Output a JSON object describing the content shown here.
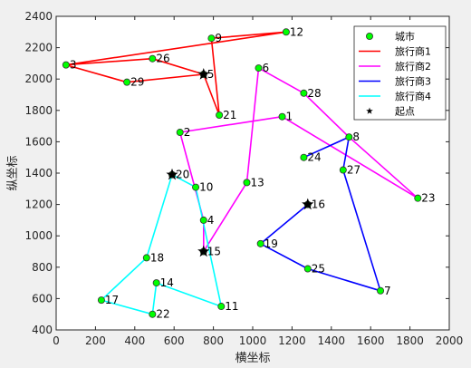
{
  "chart_data": {
    "type": "line",
    "xlabel": "横坐标",
    "ylabel": "纵坐标",
    "xlim": [
      0,
      2000
    ],
    "ylim": [
      400,
      2400
    ],
    "xticks": [
      0,
      200,
      400,
      600,
      800,
      1000,
      1200,
      1400,
      1600,
      1800,
      2000
    ],
    "yticks": [
      400,
      600,
      800,
      1000,
      1200,
      1400,
      1600,
      1800,
      2000,
      2200,
      2400
    ],
    "grid": false,
    "legend_position": "top-right",
    "legend": [
      {
        "label": "城市",
        "kind": "marker",
        "color": "#00ff00"
      },
      {
        "label": "旅行商1",
        "kind": "line",
        "color": "#ff0000"
      },
      {
        "label": "旅行商2",
        "kind": "line",
        "color": "#ff00ff"
      },
      {
        "label": "旅行商3",
        "kind": "line",
        "color": "#0000ff"
      },
      {
        "label": "旅行商4",
        "kind": "line",
        "color": "#00ffff"
      },
      {
        "label": "起点",
        "kind": "star",
        "color": "#000000"
      }
    ],
    "cities": [
      {
        "id": "1",
        "x": 1150,
        "y": 1760
      },
      {
        "id": "2",
        "x": 630,
        "y": 1660
      },
      {
        "id": "3",
        "x": 50,
        "y": 2090
      },
      {
        "id": "4",
        "x": 750,
        "y": 1100
      },
      {
        "id": "5",
        "x": 750,
        "y": 2030
      },
      {
        "id": "6",
        "x": 1030,
        "y": 2070
      },
      {
        "id": "7",
        "x": 1650,
        "y": 650
      },
      {
        "id": "8",
        "x": 1490,
        "y": 1630
      },
      {
        "id": "9",
        "x": 790,
        "y": 2260
      },
      {
        "id": "10",
        "x": 710,
        "y": 1310
      },
      {
        "id": "11",
        "x": 840,
        "y": 550
      },
      {
        "id": "12",
        "x": 1170,
        "y": 2300
      },
      {
        "id": "13",
        "x": 970,
        "y": 1340
      },
      {
        "id": "14",
        "x": 510,
        "y": 700
      },
      {
        "id": "15",
        "x": 750,
        "y": 900
      },
      {
        "id": "16",
        "x": 1280,
        "y": 1200
      },
      {
        "id": "17",
        "x": 230,
        "y": 590
      },
      {
        "id": "18",
        "x": 460,
        "y": 860
      },
      {
        "id": "19",
        "x": 1040,
        "y": 950
      },
      {
        "id": "20",
        "x": 590,
        "y": 1390
      },
      {
        "id": "21",
        "x": 830,
        "y": 1770
      },
      {
        "id": "22",
        "x": 490,
        "y": 500
      },
      {
        "id": "23",
        "x": 1840,
        "y": 1240
      },
      {
        "id": "24",
        "x": 1260,
        "y": 1500
      },
      {
        "id": "25",
        "x": 1280,
        "y": 790
      },
      {
        "id": "26",
        "x": 490,
        "y": 2130
      },
      {
        "id": "27",
        "x": 1460,
        "y": 1420
      },
      {
        "id": "28",
        "x": 1260,
        "y": 1910
      },
      {
        "id": "29",
        "x": 360,
        "y": 1980
      }
    ],
    "starts": [
      {
        "x": 750,
        "y": 2030
      },
      {
        "x": 750,
        "y": 900
      },
      {
        "x": 1280,
        "y": 1200
      },
      {
        "x": 590,
        "y": 1390
      }
    ],
    "series": [
      {
        "name": "旅行商1",
        "color": "#ff0000",
        "route": [
          [
            750,
            2030
          ],
          [
            490,
            2130
          ],
          [
            50,
            2090
          ],
          [
            360,
            1980
          ],
          [
            750,
            2030
          ],
          [
            830,
            1770
          ],
          [
            790,
            2260
          ],
          [
            1170,
            2300
          ],
          [
            50,
            2090
          ]
        ]
      },
      {
        "name": "旅行商2",
        "color": "#ff00ff",
        "route": [
          [
            750,
            900
          ],
          [
            970,
            1340
          ],
          [
            1030,
            2070
          ],
          [
            1260,
            1910
          ],
          [
            1490,
            1630
          ],
          [
            1840,
            1240
          ],
          [
            1150,
            1760
          ],
          [
            630,
            1660
          ],
          [
            750,
            1100
          ],
          [
            750,
            900
          ]
        ]
      },
      {
        "name": "旅行商3",
        "color": "#0000ff",
        "route": [
          [
            1280,
            1200
          ],
          [
            1040,
            950
          ],
          [
            1280,
            790
          ],
          [
            1650,
            650
          ],
          [
            1460,
            1420
          ],
          [
            1490,
            1630
          ],
          [
            1260,
            1500
          ]
        ]
      },
      {
        "name": "旅行商4",
        "color": "#00ffff",
        "route": [
          [
            590,
            1390
          ],
          [
            710,
            1310
          ],
          [
            840,
            550
          ],
          [
            510,
            700
          ],
          [
            490,
            500
          ],
          [
            230,
            590
          ],
          [
            460,
            860
          ],
          [
            590,
            1390
          ]
        ]
      }
    ]
  }
}
